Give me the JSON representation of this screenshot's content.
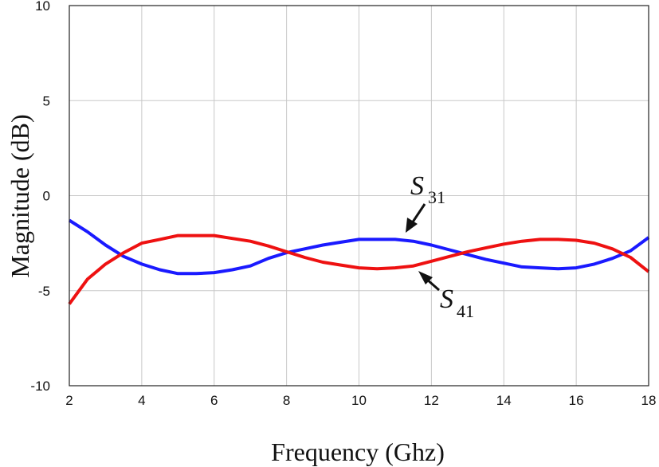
{
  "chart_data": {
    "type": "line",
    "xlabel": "Frequency (Ghz)",
    "ylabel": "Magnitude (dB)",
    "xlim": [
      2,
      18
    ],
    "ylim": [
      -10,
      10
    ],
    "xticks": [
      2,
      4,
      6,
      8,
      10,
      12,
      14,
      16,
      18
    ],
    "yticks": [
      -10,
      -5,
      0,
      5,
      10
    ],
    "grid": true,
    "colors": {
      "S31": "#1a1aff",
      "S41": "#ee1111"
    },
    "x": [
      2,
      2.5,
      3,
      3.5,
      4,
      4.5,
      5,
      5.5,
      6,
      6.5,
      7,
      7.5,
      8,
      8.5,
      9,
      9.5,
      10,
      10.5,
      11,
      11.5,
      12,
      12.5,
      13,
      13.5,
      14,
      14.5,
      15,
      15.5,
      16,
      16.5,
      17,
      17.5,
      18
    ],
    "series": [
      {
        "key": "S31",
        "values": [
          -1.3,
          -1.9,
          -2.6,
          -3.2,
          -3.6,
          -3.9,
          -4.1,
          -4.1,
          -4.05,
          -3.9,
          -3.7,
          -3.3,
          -3.0,
          -2.8,
          -2.6,
          -2.45,
          -2.3,
          -2.3,
          -2.3,
          -2.4,
          -2.6,
          -2.85,
          -3.1,
          -3.35,
          -3.55,
          -3.75,
          -3.8,
          -3.85,
          -3.8,
          -3.6,
          -3.3,
          -2.9,
          -2.2
        ]
      },
      {
        "key": "S41",
        "values": [
          -5.7,
          -4.4,
          -3.6,
          -3.0,
          -2.5,
          -2.3,
          -2.1,
          -2.1,
          -2.1,
          -2.25,
          -2.4,
          -2.65,
          -2.95,
          -3.25,
          -3.5,
          -3.65,
          -3.8,
          -3.85,
          -3.8,
          -3.7,
          -3.45,
          -3.2,
          -2.95,
          -2.75,
          -2.55,
          -2.4,
          -2.3,
          -2.3,
          -2.35,
          -2.5,
          -2.8,
          -3.25,
          -4.0
        ]
      }
    ],
    "annotations": [
      {
        "label": "S",
        "subscript": "31"
      },
      {
        "label": "S",
        "subscript": "41"
      }
    ]
  }
}
